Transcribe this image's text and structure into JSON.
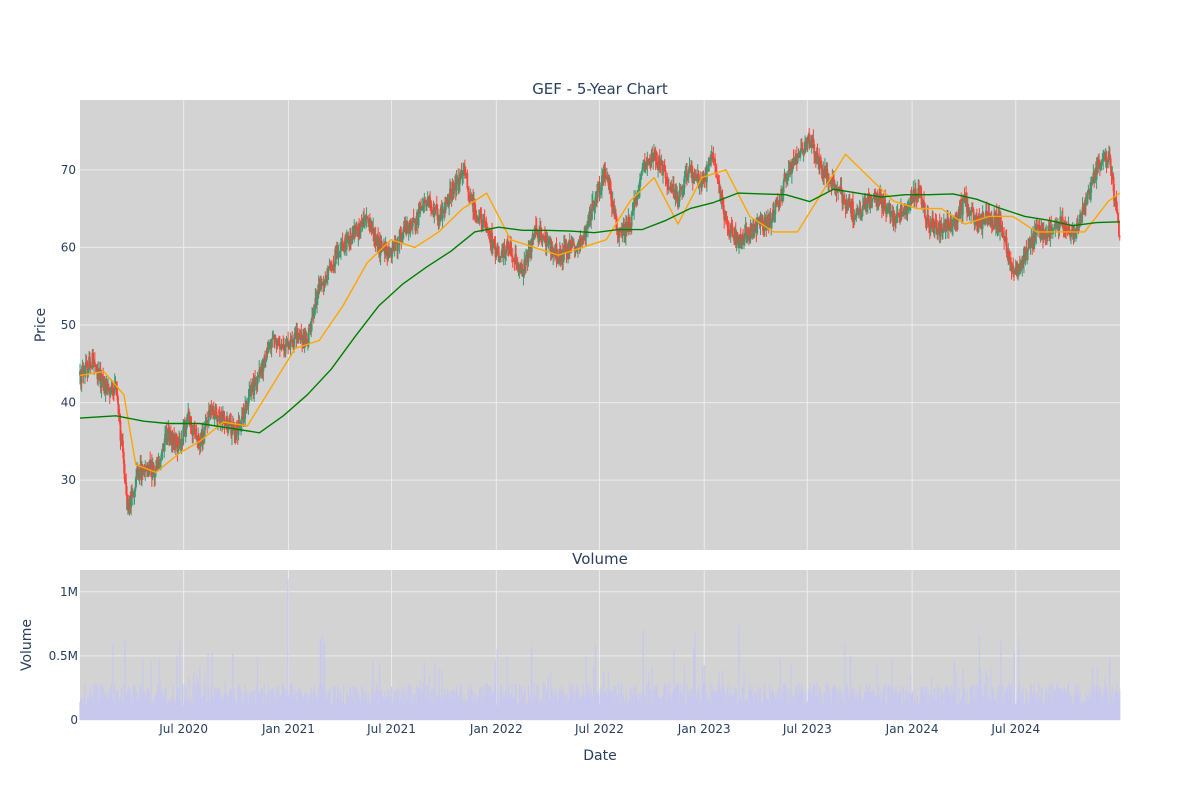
{
  "chart_data": [
    {
      "type": "line",
      "title": "GEF - 5-Year Chart",
      "ylabel": "Price",
      "ylim": [
        21,
        79
      ],
      "yticks": [
        30,
        40,
        50,
        60,
        70
      ],
      "grid": true,
      "legend": "none",
      "colors": {
        "background": "#d3d3d3",
        "grid": "#ececec",
        "up": "#3d9970",
        "down": "#ff4136",
        "sma20": "#ffa500",
        "sma200": "#008000"
      },
      "series": [
        {
          "role": "close",
          "x": [
            "2020-01-01",
            "2020-01-22",
            "2020-02-12",
            "2020-03-04",
            "2020-03-18",
            "2020-03-25",
            "2020-04-08",
            "2020-04-22",
            "2020-05-13",
            "2020-06-03",
            "2020-06-24",
            "2020-07-08",
            "2020-07-29",
            "2020-08-19",
            "2020-09-09",
            "2020-09-30",
            "2020-10-21",
            "2020-11-11",
            "2020-12-02",
            "2020-12-23",
            "2021-01-13",
            "2021-02-03",
            "2021-02-24",
            "2021-03-17",
            "2021-04-07",
            "2021-04-28",
            "2021-05-19",
            "2021-06-09",
            "2021-06-30",
            "2021-07-21",
            "2021-08-11",
            "2021-09-01",
            "2021-09-22",
            "2021-10-13",
            "2021-11-03",
            "2021-11-24",
            "2021-12-15",
            "2022-01-05",
            "2022-01-26",
            "2022-02-16",
            "2022-03-09",
            "2022-03-30",
            "2022-04-20",
            "2022-05-11",
            "2022-06-01",
            "2022-06-22",
            "2022-07-13",
            "2022-08-03",
            "2022-08-24",
            "2022-09-14",
            "2022-10-05",
            "2022-10-26",
            "2022-11-16",
            "2022-12-07",
            "2022-12-28",
            "2023-01-18",
            "2023-02-08",
            "2023-03-01",
            "2023-03-22",
            "2023-04-12",
            "2023-05-03",
            "2023-05-24",
            "2023-06-14",
            "2023-07-05",
            "2023-07-26",
            "2023-08-16",
            "2023-09-06",
            "2023-09-27",
            "2023-10-18",
            "2023-11-08",
            "2023-11-29",
            "2023-12-20",
            "2024-01-10",
            "2024-01-31",
            "2024-02-21",
            "2024-03-13",
            "2024-04-03",
            "2024-04-24",
            "2024-05-15",
            "2024-06-05",
            "2024-06-26",
            "2024-07-17",
            "2024-08-07",
            "2024-08-28",
            "2024-09-18",
            "2024-10-09",
            "2024-10-30",
            "2024-11-20",
            "2024-12-11",
            "2024-12-31"
          ],
          "values": [
            43.5,
            45.5,
            42,
            41.5,
            32,
            26,
            30,
            32,
            31,
            36,
            34.5,
            38,
            35,
            39,
            38,
            36,
            40,
            44,
            48,
            47,
            49,
            48,
            55,
            58,
            60,
            62,
            64,
            60,
            59,
            62,
            63,
            66,
            64,
            67,
            70,
            65,
            62,
            59,
            60,
            57,
            62,
            61,
            59,
            60,
            61,
            66,
            70,
            62,
            63,
            70,
            72,
            69,
            66,
            70,
            68,
            72,
            63,
            61,
            62,
            63,
            64,
            69,
            72,
            74,
            70,
            68,
            66,
            64,
            66,
            66,
            64,
            65,
            67,
            63,
            62,
            63,
            66,
            63,
            64,
            63,
            57,
            59,
            62,
            62,
            63,
            62,
            65,
            70,
            72,
            61
          ]
        },
        {
          "name": "",
          "role": "sma20",
          "x": [
            "2020-01-01",
            "2020-02-12",
            "2020-03-18",
            "2020-04-08",
            "2020-05-13",
            "2020-06-24",
            "2020-07-29",
            "2020-09-09",
            "2020-10-21",
            "2020-12-02",
            "2021-01-13",
            "2021-02-24",
            "2021-04-07",
            "2021-05-19",
            "2021-06-30",
            "2021-08-11",
            "2021-09-22",
            "2021-11-03",
            "2021-12-15",
            "2022-01-26",
            "2022-03-09",
            "2022-04-20",
            "2022-06-01",
            "2022-07-13",
            "2022-08-24",
            "2022-10-05",
            "2022-11-16",
            "2022-12-28",
            "2023-02-08",
            "2023-03-22",
            "2023-05-03",
            "2023-06-14",
            "2023-07-26",
            "2023-09-06",
            "2023-10-18",
            "2023-11-29",
            "2024-01-10",
            "2024-02-21",
            "2024-04-03",
            "2024-05-15",
            "2024-06-26",
            "2024-08-07",
            "2024-09-18",
            "2024-10-30",
            "2024-12-11",
            "2024-12-31"
          ],
          "values": [
            43.5,
            44,
            41,
            32,
            31,
            33.5,
            35,
            37.5,
            37,
            42,
            47,
            48,
            52.5,
            58,
            61,
            60,
            62,
            65,
            67,
            61,
            60,
            59,
            60,
            61,
            66,
            69,
            63,
            69,
            70,
            64,
            62,
            62,
            67,
            72,
            69,
            66,
            65,
            65,
            63,
            64,
            64,
            62,
            62,
            62,
            66,
            67
          ]
        },
        {
          "name": "",
          "role": "sma200",
          "x": [
            "2020-01-01",
            "2020-03-04",
            "2020-04-22",
            "2020-06-03",
            "2020-07-29",
            "2020-09-30",
            "2020-11-11",
            "2020-12-23",
            "2021-02-03",
            "2021-03-17",
            "2021-04-28",
            "2021-06-09",
            "2021-07-21",
            "2021-09-01",
            "2021-10-13",
            "2021-11-24",
            "2022-01-05",
            "2022-02-16",
            "2022-03-30",
            "2022-05-11",
            "2022-06-22",
            "2022-08-03",
            "2022-09-14",
            "2022-10-26",
            "2022-12-07",
            "2023-01-18",
            "2023-03-01",
            "2023-04-12",
            "2023-05-24",
            "2023-07-05",
            "2023-08-16",
            "2023-09-27",
            "2023-11-08",
            "2023-12-20",
            "2024-01-31",
            "2024-03-13",
            "2024-04-24",
            "2024-06-05",
            "2024-07-17",
            "2024-08-28",
            "2024-10-09",
            "2024-11-20",
            "2024-12-31"
          ],
          "values": [
            38,
            38.3,
            37.6,
            37.3,
            37.3,
            36.6,
            36.1,
            38.3,
            41,
            44.3,
            48.5,
            52.5,
            55.3,
            57.5,
            59.5,
            62,
            62.6,
            62.2,
            62.2,
            62.1,
            61.9,
            62.3,
            62.3,
            63.5,
            65,
            65.8,
            67,
            66.9,
            66.8,
            65.9,
            67.5,
            67,
            66.5,
            66.8,
            66.8,
            66.9,
            66.2,
            65,
            64,
            63.5,
            62.8,
            63.2,
            63.3
          ]
        }
      ]
    },
    {
      "type": "bar",
      "title": "Volume",
      "xlabel": "Date",
      "ylabel": "Volume",
      "ylim": [
        0,
        1170000
      ],
      "yticks": [
        {
          "v": 0,
          "label": "0"
        },
        {
          "v": 500000,
          "label": "0.5M"
        },
        {
          "v": 1000000,
          "label": "1M"
        }
      ],
      "xticks": [
        {
          "v": "2020-07-01",
          "label": "Jul 2020"
        },
        {
          "v": "2021-01-01",
          "label": "Jan 2021"
        },
        {
          "v": "2021-07-01",
          "label": "Jul 2021"
        },
        {
          "v": "2022-01-01",
          "label": "Jan 2022"
        },
        {
          "v": "2022-07-01",
          "label": "Jul 2022"
        },
        {
          "v": "2023-01-01",
          "label": "Jan 2023"
        },
        {
          "v": "2023-07-01",
          "label": "Jul 2023"
        },
        {
          "v": "2024-01-01",
          "label": "Jan 2024"
        },
        {
          "v": "2024-07-01",
          "label": "Jul 2024"
        }
      ],
      "xrange": [
        "2020-01-01",
        "2024-12-31"
      ],
      "grid": true,
      "colors": {
        "background": "#d3d3d3",
        "grid": "#ececec",
        "bar": "#c8c8ee"
      },
      "typical_volume": 200000,
      "spikes": [
        {
          "x": "2020-03-20",
          "v": 620000
        },
        {
          "x": "2020-06-19",
          "v": 500000
        },
        {
          "x": "2020-09-25",
          "v": 520000
        },
        {
          "x": "2020-12-31",
          "v": 1100000
        },
        {
          "x": "2021-03-05",
          "v": 610000
        },
        {
          "x": "2021-06-10",
          "v": 430000
        },
        {
          "x": "2021-09-15",
          "v": 440000
        },
        {
          "x": "2022-03-04",
          "v": 570000
        },
        {
          "x": "2022-06-24",
          "v": 580000
        },
        {
          "x": "2022-09-16",
          "v": 700000
        },
        {
          "x": "2022-12-16",
          "v": 690000
        },
        {
          "x": "2023-03-03",
          "v": 740000
        },
        {
          "x": "2023-09-15",
          "v": 500000
        },
        {
          "x": "2024-03-15",
          "v": 460000
        },
        {
          "x": "2024-06-28",
          "v": 530000
        },
        {
          "x": "2024-12-13",
          "v": 480000
        }
      ]
    }
  ]
}
